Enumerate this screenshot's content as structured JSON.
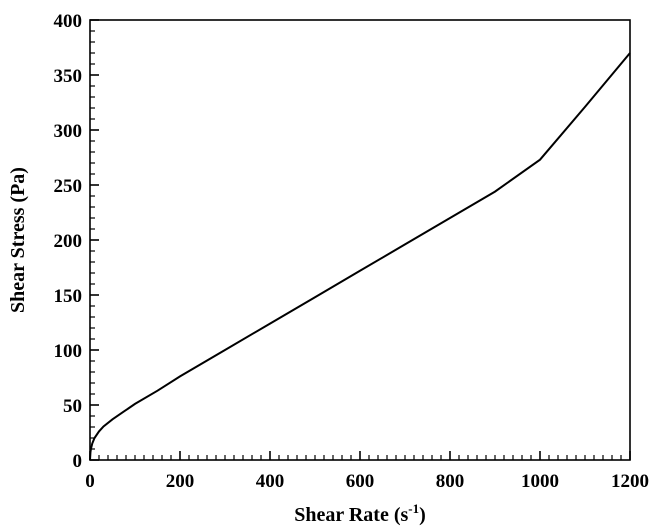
{
  "chart_data": {
    "type": "line",
    "title": "",
    "xlabel": "Shear Rate (s",
    "xlabel_superscript": "-1",
    "xlabel_suffix": ")",
    "ylabel": "Shear Stress (Pa)",
    "xlim": [
      0,
      1200
    ],
    "ylim": [
      0,
      400
    ],
    "x_ticks": [
      0,
      200,
      400,
      600,
      800,
      1000,
      1200
    ],
    "y_ticks": [
      0,
      50,
      100,
      150,
      200,
      250,
      300,
      350,
      400
    ],
    "x_tick_labels": [
      "0",
      "200",
      "400",
      "600",
      "800",
      "1000",
      "1200"
    ],
    "y_tick_labels": [
      "0",
      "50",
      "100",
      "150",
      "200",
      "250",
      "300",
      "350",
      "400"
    ],
    "x_minor_tick_step": 20,
    "y_minor_tick_step": 10,
    "grid": false,
    "line_color": "#000000",
    "series": [
      {
        "x": [
          0,
          1,
          2,
          5,
          10,
          20,
          30,
          50,
          75,
          100,
          150,
          200,
          300,
          400,
          500,
          600,
          700,
          800,
          900,
          1000,
          1100,
          1200
        ],
        "y": [
          0,
          7,
          10,
          15,
          20,
          26,
          30.5,
          37,
          44,
          51,
          63,
          76,
          100,
          124,
          148,
          172,
          196,
          220,
          244,
          273,
          321,
          370
        ]
      }
    ]
  }
}
